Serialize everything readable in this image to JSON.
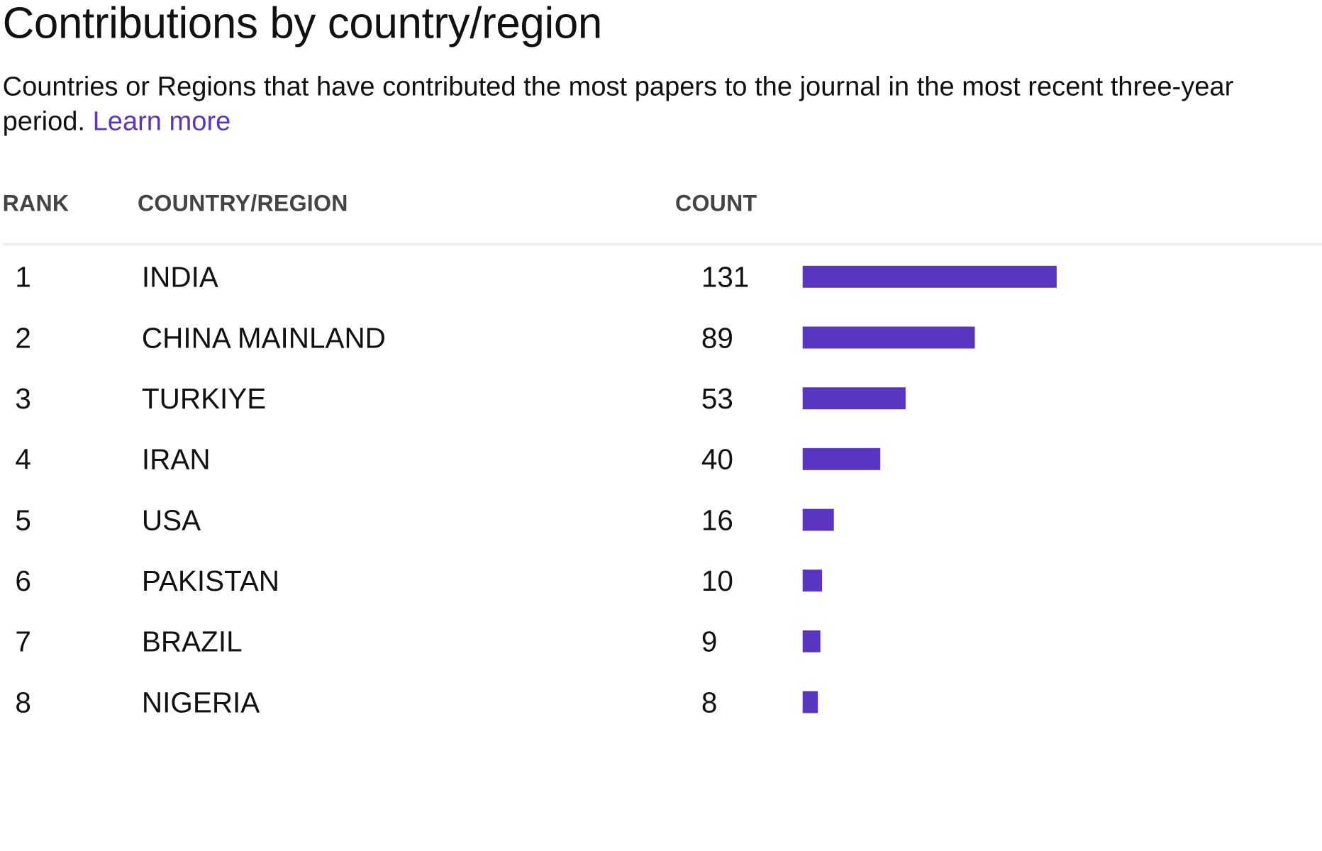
{
  "title": "Contributions by country/region",
  "subtitle": "Countries or Regions that have contributed the most papers to the journal in the most recent three-year period.",
  "learn_more": "Learn more",
  "colors": {
    "accent": "#5a35c0",
    "header_text": "#444444",
    "divider": "#eeeeee"
  },
  "table": {
    "headers": {
      "rank": "RANK",
      "country": "COUNTRY/REGION",
      "count": "COUNT"
    }
  },
  "chart_data": {
    "type": "bar",
    "orientation": "horizontal",
    "categories": [
      "INDIA",
      "CHINA MAINLAND",
      "TURKIYE",
      "IRAN",
      "USA",
      "PAKISTAN",
      "BRAZIL",
      "NIGERIA"
    ],
    "ranks": [
      "1",
      "2",
      "3",
      "4",
      "5",
      "6",
      "7",
      "8"
    ],
    "values": [
      131,
      89,
      53,
      40,
      16,
      10,
      9,
      8
    ],
    "title": "Contributions by country/region",
    "grid": false
  }
}
